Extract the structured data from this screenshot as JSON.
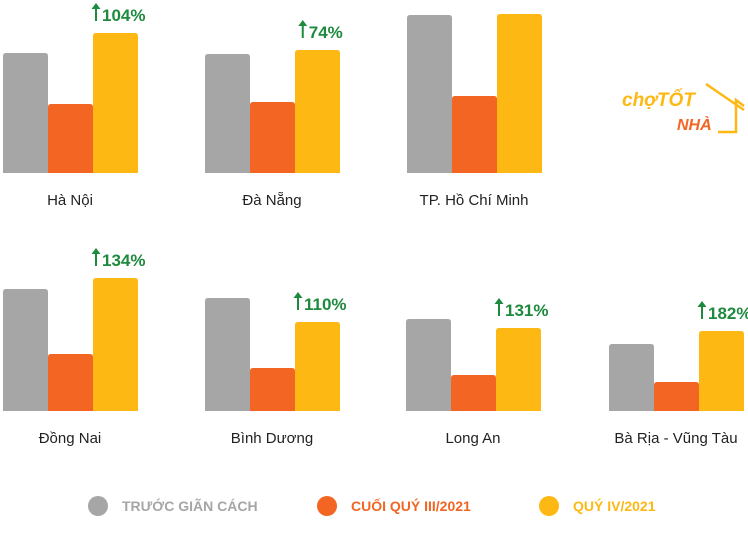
{
  "chart_data": {
    "type": "bar",
    "title": "",
    "colors": {
      "truoc": "#a6a6a6",
      "cuoi_q3": "#f26522",
      "q4": "#fdb813",
      "growth": "#1e8a3e"
    },
    "series": [
      {
        "name": "TRƯỚC GIÃN CÁCH",
        "values": [
          120,
          119,
          158,
          122,
          113,
          92,
          67
        ]
      },
      {
        "name": "CUỐI QUÝ III/2021",
        "values": [
          69,
          71,
          77,
          57,
          43,
          36,
          29
        ]
      },
      {
        "name": "QUÝ IV/2021",
        "values": [
          140,
          123,
          159,
          133,
          89,
          83,
          80
        ]
      }
    ],
    "categories": [
      "Hà Nội",
      "Đà Nẵng",
      "TP. Hồ Chí Minh",
      "Đồng Nai",
      "Bình Dương",
      "Long An",
      "Bà Rịa - Vũng Tàu"
    ],
    "growth_labels": [
      "104%",
      "74%",
      "",
      "134%",
      "110%",
      "131%",
      "182%"
    ],
    "growth_icon": "arrow-up-icon",
    "grid": false,
    "legend_position": "bottom"
  },
  "logo": {
    "text1": "chợTỐT",
    "text2": "NHÀ"
  }
}
